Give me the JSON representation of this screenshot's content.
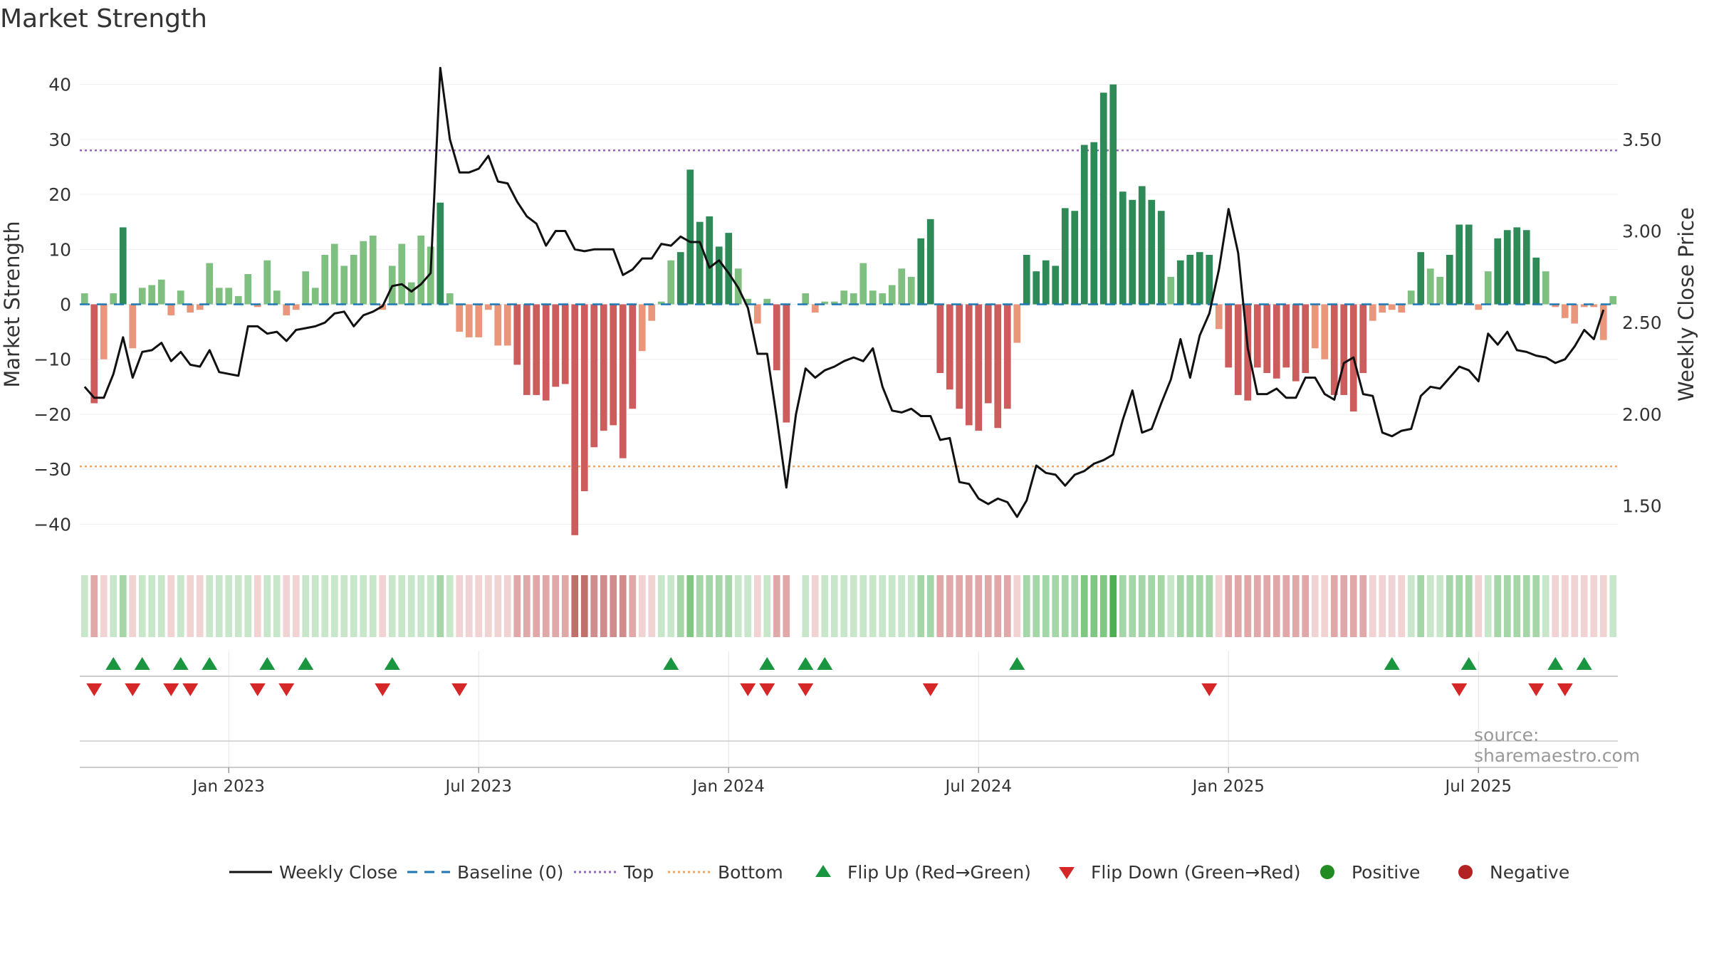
{
  "chart_data": {
    "type": "bar",
    "title": "Market Strength",
    "ylabel": "Market Strength",
    "y2label": "Weekly Close Price",
    "ylim": [
      -45,
      45
    ],
    "y2lim": [
      1.25,
      3.95
    ],
    "yticks": [
      40,
      30,
      20,
      10,
      0,
      -10,
      -20,
      -30,
      -40
    ],
    "ytick_labels": [
      "40",
      "30",
      "20",
      "10",
      "0",
      "−10",
      "−20",
      "−30",
      "−40"
    ],
    "y2ticks": [
      3.5,
      3.0,
      2.5,
      2.0,
      1.5
    ],
    "y2tick_labels": [
      "3.50",
      "3.00",
      "2.50",
      "2.00",
      "1.50"
    ],
    "top_level": 28,
    "bottom_level": -29.5,
    "xticks": [
      {
        "label": "Jan 2023",
        "week": 15
      },
      {
        "label": "Jul 2023",
        "week": 41
      },
      {
        "label": "Jan 2024",
        "week": 67
      },
      {
        "label": "Jul 2024",
        "week": 93
      },
      {
        "label": "Jan 2025",
        "week": 119
      },
      {
        "label": "Jul 2025",
        "week": 145
      }
    ],
    "strength": [
      2,
      -18,
      -10,
      2,
      14,
      -8,
      3,
      3.5,
      4.5,
      -2,
      2.5,
      -1.5,
      -1,
      7.5,
      3,
      3,
      1.5,
      5.5,
      -0.5,
      8,
      2.5,
      -2,
      -1,
      6,
      3,
      9,
      11,
      7,
      9,
      11.5,
      12.5,
      -1,
      7,
      11,
      4,
      12.5,
      10.5,
      18.5,
      2,
      -5,
      -6,
      -6,
      -1,
      -7.5,
      -7.5,
      -11,
      -16.5,
      -16.5,
      -17.5,
      -15,
      -14.5,
      -42,
      -34,
      -26,
      -23,
      -22,
      -28,
      -19,
      -8.5,
      -3,
      0.5,
      8,
      9.5,
      24.5,
      15,
      16,
      10.5,
      13,
      6.5,
      1,
      -3.5,
      1,
      -12,
      -21.5,
      0,
      2,
      -1.5,
      0.5,
      0.5,
      2.5,
      2,
      7.5,
      2.5,
      2,
      3.5,
      6.5,
      5,
      12,
      15.5,
      -12.5,
      -15.5,
      -19,
      -22,
      -23,
      -18,
      -22.5,
      -19,
      -7,
      9,
      6,
      8,
      7,
      17.5,
      17,
      29,
      29.5,
      38.5,
      40,
      20.5,
      19,
      21.5,
      19,
      17,
      5,
      8,
      9,
      9.5,
      9,
      -4.5,
      -11.5,
      -16.5,
      -17.5,
      -11.5,
      -12.5,
      -13.5,
      -11.5,
      -14,
      -12.5,
      -8,
      -10,
      -16.5,
      -16.5,
      -19.5,
      -12.5,
      -3,
      -1.5,
      -1,
      -1.5,
      2.5,
      9.5,
      6.5,
      5,
      9,
      14.5,
      14.5,
      -1,
      6,
      12,
      13.5,
      14,
      13.5,
      8.5,
      6,
      -0.5,
      -2.5,
      -3.5,
      -0.5,
      -0.5,
      -6.5,
      1.5
    ],
    "weekly_close": [
      2.15,
      2.09,
      2.09,
      2.22,
      2.42,
      2.2,
      2.34,
      2.35,
      2.39,
      2.29,
      2.34,
      2.27,
      2.26,
      2.35,
      2.23,
      2.22,
      2.21,
      2.48,
      2.48,
      2.44,
      2.45,
      2.4,
      2.46,
      2.47,
      2.48,
      2.5,
      2.55,
      2.56,
      2.48,
      2.54,
      2.56,
      2.59,
      2.7,
      2.71,
      2.67,
      2.71,
      2.77,
      3.89,
      3.5,
      3.32,
      3.32,
      3.34,
      3.41,
      3.27,
      3.26,
      3.16,
      3.08,
      3.04,
      2.92,
      3.0,
      3.0,
      2.9,
      2.89,
      2.9,
      2.9,
      2.9,
      2.76,
      2.79,
      2.85,
      2.85,
      2.93,
      2.92,
      2.97,
      2.94,
      2.94,
      2.8,
      2.84,
      2.77,
      2.69,
      2.58,
      2.33,
      2.33,
      1.98,
      1.6,
      2.0,
      2.25,
      2.2,
      2.24,
      2.26,
      2.29,
      2.31,
      2.29,
      2.36,
      2.15,
      2.02,
      2.01,
      2.03,
      1.99,
      1.99,
      1.86,
      1.87,
      1.63,
      1.62,
      1.54,
      1.51,
      1.54,
      1.52,
      1.44,
      1.53,
      1.72,
      1.68,
      1.67,
      1.61,
      1.67,
      1.69,
      1.73,
      1.75,
      1.78,
      1.97,
      2.13,
      1.9,
      1.92,
      2.06,
      2.19,
      2.41,
      2.2,
      2.43,
      2.55,
      2.79,
      3.12,
      2.88,
      2.36,
      2.11,
      2.11,
      2.14,
      2.09,
      2.09,
      2.2,
      2.2,
      2.11,
      2.08,
      2.28,
      2.31,
      2.11,
      2.1,
      1.9,
      1.88,
      1.91,
      1.92,
      2.1,
      2.15,
      2.14,
      2.2,
      2.26,
      2.24,
      2.18,
      2.44,
      2.38,
      2.45,
      2.35,
      2.34,
      2.32,
      2.31,
      2.28,
      2.3,
      2.37,
      2.46,
      2.41,
      2.57
    ],
    "shading": [
      1,
      -2,
      -1,
      1,
      2,
      -1,
      1,
      1,
      1,
      -1,
      1,
      -1,
      -1,
      1,
      1,
      1,
      1,
      1,
      -1,
      1,
      1,
      -1,
      -1,
      1,
      1,
      1,
      1,
      1,
      1,
      1,
      1,
      -1,
      1,
      1,
      1,
      1,
      1,
      2,
      1,
      -1,
      -1,
      -1,
      -1,
      -1,
      -1,
      -2,
      -2,
      -2,
      -2,
      -2,
      -2,
      -4,
      -4,
      -3,
      -3,
      -3,
      -3,
      -2,
      -1,
      -1,
      1,
      1,
      2,
      3,
      2,
      2,
      2,
      2,
      1,
      1,
      -1,
      1,
      -2,
      -2,
      0,
      1,
      -1,
      1,
      1,
      1,
      1,
      1,
      1,
      1,
      1,
      1,
      1,
      2,
      2,
      -2,
      -2,
      -2,
      -2,
      -2,
      -2,
      -2,
      -2,
      -1,
      2,
      2,
      2,
      2,
      2,
      2,
      3,
      3,
      3,
      4,
      2,
      2,
      2,
      2,
      2,
      1,
      2,
      2,
      2,
      2,
      -1,
      -2,
      -2,
      -2,
      -2,
      -2,
      -2,
      -2,
      -2,
      -2,
      -1,
      -1,
      -2,
      -2,
      -2,
      -2,
      -1,
      -1,
      -1,
      -1,
      1,
      2,
      1,
      1,
      2,
      2,
      2,
      -1,
      1,
      2,
      2,
      2,
      2,
      2,
      1,
      -1,
      -1,
      -1,
      -1,
      -1,
      -1,
      1
    ],
    "flip_up": [
      3,
      6,
      10,
      13,
      19,
      23,
      32,
      61,
      71,
      75,
      77,
      97,
      136,
      144,
      153,
      156
    ],
    "flip_down": [
      1,
      5,
      9,
      11,
      18,
      21,
      31,
      39,
      69,
      71,
      75,
      88,
      117,
      143,
      151,
      154
    ],
    "legend": [
      "Weekly Close",
      "Baseline (0)",
      "Top",
      "Bottom",
      "Flip Up (Red→Green)",
      "Flip Down (Green→Red)",
      "Positive",
      "Negative"
    ],
    "source": "source: sharemaestro.com",
    "colors": {
      "pos_strong": "#2e8b57",
      "pos_weak": "#7fbf7f",
      "neg_strong": "#cd5c5c",
      "neg_weak": "#e9967a",
      "close_line": "#111111",
      "baseline": "#1f77b4",
      "top": "#9467bd",
      "bottom": "#f4a460",
      "flip_up": "#1a9641",
      "flip_down": "#d62728",
      "positive": "#228b22",
      "negative": "#b22222"
    }
  }
}
